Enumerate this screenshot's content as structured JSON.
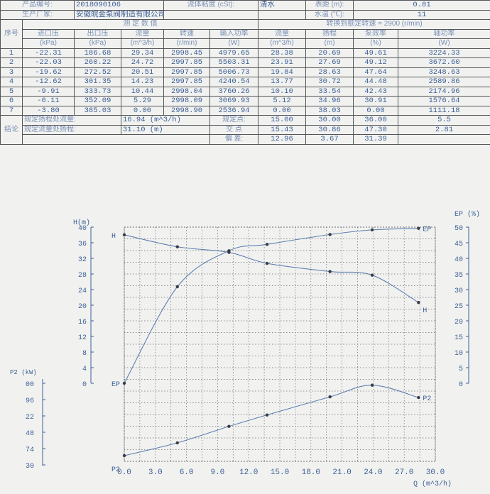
{
  "header": {
    "row1": [
      "产品编号:",
      "2018090106",
      "流体粘度 (cSt):",
      "清水",
      "表距 (m):",
      "0.81"
    ],
    "row2": [
      "生产厂家:",
      "安徽皖金泵阀制造有限公司",
      "",
      "",
      "水温 (℃):",
      "11"
    ]
  },
  "table": {
    "index_label": "序号",
    "measured_title": "测 定 数 值",
    "converted_title": "转换到额定转速 = 2900 (r/min)",
    "columns": [
      {
        "name": "进口压",
        "unit": "(kPa)"
      },
      {
        "name": "出口压",
        "unit": "(kPa)"
      },
      {
        "name": "流量",
        "unit": "(m^3/h)"
      },
      {
        "name": "转速",
        "unit": "(r/min)"
      },
      {
        "name": "输入功率",
        "unit": "(W)"
      },
      {
        "name": "流量",
        "unit": "(m^3/h)"
      },
      {
        "name": "扬程",
        "unit": "(m)"
      },
      {
        "name": "泵效率",
        "unit": "(%)"
      },
      {
        "name": "轴功率",
        "unit": "(W)"
      }
    ],
    "rows": [
      [
        "1",
        "-22.31",
        "186.68",
        "29.34",
        "2998.45",
        "4979.65",
        "28.38",
        "20.69",
        "49.61",
        "3224.33"
      ],
      [
        "2",
        "-22.03",
        "260.22",
        "24.72",
        "2997.85",
        "5503.31",
        "23.91",
        "27.69",
        "49.12",
        "3672.60"
      ],
      [
        "3",
        "-19.62",
        "272.52",
        "20.51",
        "2997.85",
        "5006.73",
        "19.84",
        "28.63",
        "47.64",
        "3248.63"
      ],
      [
        "4",
        "-12.62",
        "301.35",
        "14.23",
        "2997.85",
        "4240.54",
        "13.77",
        "30.72",
        "44.48",
        "2589.86"
      ],
      [
        "5",
        "-9.91",
        "333.73",
        "10.44",
        "2998.04",
        "3760.26",
        "10.10",
        "33.54",
        "42.43",
        "2174.96"
      ],
      [
        "6",
        "-6.11",
        "352.09",
        "5.29",
        "2998.09",
        "3069.93",
        "5.12",
        "34.96",
        "30.91",
        "1576.64"
      ],
      [
        "7",
        "-3.80",
        "385.03",
        "0.00",
        "2998.90",
        "2536.94",
        "0.00",
        "38.03",
        "0.00",
        "1111.18"
      ]
    ]
  },
  "conclusion": {
    "label": "结论",
    "rated_head_flow_label": "规定扬程处流量:",
    "rated_head_flow_value": "16.94 (m^3/h)",
    "rated_flow_head_label": "规定流量处扬程:",
    "rated_flow_head_value": "31.10 (m)",
    "rows": [
      {
        "label": "规定点:",
        "values": [
          "15.00",
          "30.00",
          "36.00",
          "5.5"
        ]
      },
      {
        "label": "交 点",
        "values": [
          "15.43",
          "30.86",
          "47.30",
          "2.81"
        ]
      },
      {
        "label": "偏 差:",
        "values": [
          "12.96",
          "3.67",
          "31.39",
          ""
        ]
      }
    ]
  },
  "chart_data": {
    "type": "line",
    "xlabel": "Q (m^3/h)",
    "xlim": [
      0,
      30
    ],
    "x_ticks": [
      "0.0",
      "3.0",
      "6.0",
      "9.0",
      "12.0",
      "15.0",
      "18.0",
      "21.0",
      "24.0",
      "27.0",
      "30.0"
    ],
    "left_axis_label": "H(m)",
    "left_ylim": [
      0,
      40
    ],
    "left_ticks": [
      "0",
      "4",
      "8",
      "12",
      "16",
      "20",
      "24",
      "28",
      "32",
      "36",
      "40"
    ],
    "right_axis_label": "EP (%)",
    "right_ylim": [
      0,
      50
    ],
    "right_ticks": [
      "0",
      "5",
      "10",
      "15",
      "20",
      "25",
      "30",
      "35",
      "40",
      "45",
      "50"
    ],
    "power_axis_label": "P2 (kW)",
    "power_ticks": [
      "00",
      "96",
      "22",
      "48",
      "74",
      "30"
    ],
    "series": [
      {
        "name": "H",
        "label_start": "H",
        "label_end": "H",
        "axis": "left",
        "x": [
          0.0,
          5.12,
          10.1,
          13.77,
          19.84,
          23.91,
          28.38
        ],
        "y": [
          38.03,
          34.96,
          33.54,
          30.72,
          28.63,
          27.69,
          20.69
        ]
      },
      {
        "name": "EP",
        "label_start": "EP",
        "label_end": "EP",
        "axis": "right",
        "x": [
          0.0,
          5.12,
          10.1,
          13.77,
          19.84,
          23.91,
          28.38
        ],
        "y": [
          0.0,
          30.91,
          42.43,
          44.48,
          47.64,
          49.12,
          49.61
        ]
      },
      {
        "name": "P2",
        "label_start": "P2",
        "label_end": "P2",
        "axis": "power",
        "x": [
          0.0,
          5.12,
          10.1,
          13.77,
          19.84,
          23.91,
          28.38
        ],
        "y": [
          1111.18,
          1576.64,
          2174.96,
          2589.86,
          3248.63,
          3672.6,
          3224.33
        ]
      }
    ],
    "colors": {
      "ink": "#3d5e98",
      "grid": "#6a6c74",
      "curve": "#5f7fb3",
      "marker": "#3a3c44"
    }
  }
}
